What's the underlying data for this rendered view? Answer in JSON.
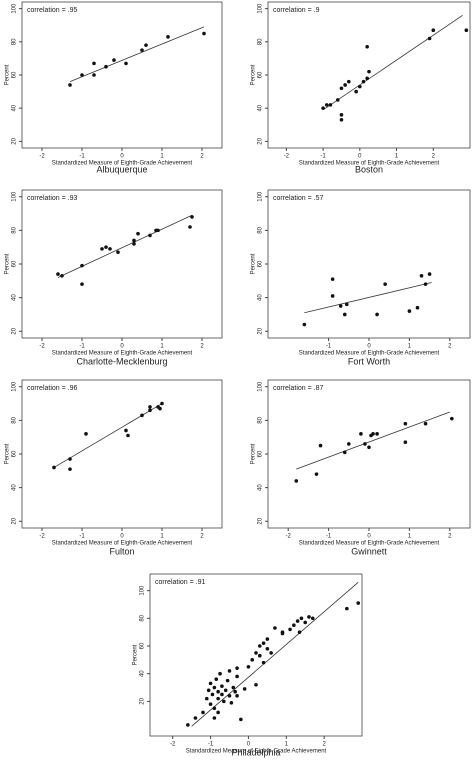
{
  "chart_data": [
    {
      "type": "scatter",
      "title": "Albuquerque",
      "annotation": "correlation = .95",
      "xlabel": "Standardized Measure of Eighth-Grade Achievement",
      "ylabel": "Percent",
      "x": [
        -1.3,
        -1.0,
        -0.7,
        -0.7,
        -0.4,
        -0.2,
        0.1,
        0.5,
        0.6,
        1.15,
        2.05
      ],
      "y": [
        54,
        60,
        60,
        67,
        65,
        69,
        67,
        75,
        78,
        83,
        85
      ],
      "fit": {
        "x": [
          -1.3,
          2.05
        ],
        "y": [
          56,
          89
        ]
      },
      "xlim": [
        -2.5,
        2.5
      ],
      "ylim": [
        16,
        104
      ],
      "xticks": [
        -2,
        -1,
        0,
        1,
        2
      ],
      "yticks": [
        20,
        40,
        60,
        80,
        100
      ],
      "color": "#111111"
    },
    {
      "type": "scatter",
      "title": "Boston",
      "annotation": "correlation = .9",
      "xlabel": "Standardized Measure of Eighth-Grade Achievement",
      "ylabel": "Percent",
      "x": [
        -1.0,
        -0.9,
        -0.8,
        -0.6,
        -0.5,
        -0.5,
        -0.5,
        -0.4,
        -0.3,
        -0.1,
        0.0,
        0.1,
        0.2,
        0.25,
        0.2,
        1.9,
        2.0,
        2.9
      ],
      "y": [
        40,
        42,
        42,
        45,
        36,
        33,
        52,
        54,
        56,
        50,
        53,
        56,
        58,
        62,
        77,
        82,
        87,
        87
      ],
      "fit": {
        "x": [
          -1.0,
          2.8
        ],
        "y": [
          39,
          96
        ]
      },
      "xlim": [
        -2.5,
        3.0
      ],
      "ylim": [
        16,
        104
      ],
      "xticks": [
        -2,
        -1,
        0,
        1,
        2
      ],
      "yticks": [
        20,
        40,
        60,
        80,
        100
      ],
      "color": "#111111"
    },
    {
      "type": "scatter",
      "title": "Charlotte-Mecklenburg",
      "annotation": "correlation = .93",
      "xlabel": "Standardized Measure of Eighth-Grade Achievement",
      "ylabel": "Percent",
      "x": [
        -1.6,
        -1.5,
        -1.0,
        -1.0,
        -0.5,
        -0.4,
        -0.3,
        -0.1,
        0.3,
        0.3,
        0.4,
        0.7,
        0.85,
        0.9,
        1.7,
        1.75
      ],
      "y": [
        54,
        53,
        59,
        48,
        69,
        70,
        69,
        67,
        72,
        74,
        78,
        77,
        80,
        80,
        82,
        88
      ],
      "fit": {
        "x": [
          -1.6,
          1.75
        ],
        "y": [
          52,
          89
        ]
      },
      "xlim": [
        -2.5,
        2.5
      ],
      "ylim": [
        16,
        104
      ],
      "xticks": [
        -2,
        -1,
        0,
        1,
        2
      ],
      "yticks": [
        20,
        40,
        60,
        80,
        100
      ],
      "color": "#111111"
    },
    {
      "type": "scatter",
      "title": "Fort Worth",
      "annotation": "correlation = .57",
      "xlabel": "Standardized Measure of Eighth-Grade Achievement",
      "ylabel": "Percent",
      "x": [
        -1.6,
        -0.9,
        -0.9,
        -0.7,
        -0.6,
        -0.55,
        0.2,
        0.4,
        1.0,
        1.2,
        1.3,
        1.4,
        1.5
      ],
      "y": [
        24,
        51,
        41,
        35,
        30,
        36,
        30,
        48,
        32,
        34,
        53,
        48,
        54
      ],
      "fit": {
        "x": [
          -1.6,
          1.55
        ],
        "y": [
          31,
          49
        ]
      },
      "xlim": [
        -2.5,
        2.5
      ],
      "ylim": [
        16,
        104
      ],
      "xticks": [
        -1,
        0,
        1,
        2
      ],
      "yticks": [
        20,
        40,
        60,
        80,
        100
      ],
      "color": "#111111"
    },
    {
      "type": "scatter",
      "title": "Fulton",
      "annotation": "correlation = .96",
      "xlabel": "Standardized Measure of Eighth-Grade Achievement",
      "ylabel": "Percent",
      "x": [
        -1.7,
        -1.3,
        -1.3,
        -0.9,
        0.1,
        0.15,
        0.5,
        0.7,
        0.7,
        0.9,
        0.95,
        1.0
      ],
      "y": [
        52,
        57,
        51,
        72,
        74,
        71,
        83,
        86,
        88,
        88,
        87,
        90
      ],
      "fit": {
        "x": [
          -1.7,
          1.0
        ],
        "y": [
          52,
          90
        ]
      },
      "xlim": [
        -2.5,
        2.5
      ],
      "ylim": [
        16,
        104
      ],
      "xticks": [
        -2,
        -1,
        0,
        1,
        2
      ],
      "yticks": [
        20,
        40,
        60,
        80,
        100
      ],
      "color": "#111111"
    },
    {
      "type": "scatter",
      "title": "Gwinnett",
      "annotation": "correlation = .87",
      "xlabel": "Standardized Measure of Eighth-Grade Achievement",
      "ylabel": "Percent",
      "x": [
        -1.8,
        -1.3,
        -1.2,
        -0.6,
        -0.5,
        -0.2,
        -0.1,
        0.0,
        0.05,
        0.1,
        0.2,
        0.9,
        0.9,
        1.4,
        2.05
      ],
      "y": [
        44,
        48,
        65,
        61,
        66,
        72,
        66,
        64,
        71,
        72,
        72,
        67,
        78,
        78,
        81
      ],
      "fit": {
        "x": [
          -1.8,
          2.0
        ],
        "y": [
          51,
          85
        ]
      },
      "xlim": [
        -2.5,
        2.5
      ],
      "ylim": [
        16,
        104
      ],
      "xticks": [
        -2,
        -1,
        0,
        1,
        2
      ],
      "yticks": [
        20,
        40,
        60,
        80,
        100
      ],
      "color": "#111111"
    },
    {
      "type": "scatter",
      "title": "Philadelphia",
      "annotation": "correlation = .91",
      "xlabel": "Standardized Measure of Eighth-Grade Achievement",
      "ylabel": "Percent",
      "x": [
        -1.6,
        -1.4,
        -1.2,
        -1.1,
        -1.05,
        -1.0,
        -1.0,
        -0.95,
        -0.9,
        -0.9,
        -0.85,
        -0.8,
        -0.8,
        -0.75,
        -0.7,
        -0.7,
        -0.65,
        -0.6,
        -0.55,
        -0.5,
        -0.5,
        -0.45,
        -0.4,
        -0.35,
        -0.3,
        -0.3,
        -0.2,
        -0.1,
        0.0,
        0.1,
        0.2,
        0.2,
        0.3,
        0.4,
        0.4,
        0.5,
        0.5,
        0.6,
        0.7,
        0.9,
        1.1,
        1.2,
        1.3,
        1.35,
        1.4,
        1.5,
        1.6,
        1.7,
        2.6,
        2.9,
        -0.9,
        -0.8,
        -0.3,
        0.3,
        0.9
      ],
      "y": [
        3,
        8,
        12,
        22,
        28,
        18,
        33,
        25,
        30,
        15,
        36,
        27,
        22,
        40,
        31,
        25,
        20,
        28,
        35,
        24,
        42,
        19,
        30,
        27,
        38,
        44,
        7,
        29,
        45,
        50,
        32,
        55,
        53,
        62,
        48,
        58,
        65,
        55,
        73,
        69,
        72,
        75,
        78,
        70,
        80,
        77,
        81,
        80,
        87,
        91,
        8,
        12,
        24,
        60,
        70
      ],
      "fit": {
        "x": [
          -1.5,
          2.9
        ],
        "y": [
          2,
          106
        ]
      },
      "xlim": [
        -2.6,
        3.0
      ],
      "ylim": [
        -5,
        112
      ],
      "xticks": [
        -2,
        -1,
        0,
        1,
        2
      ],
      "yticks": [
        20,
        40,
        60,
        80,
        100
      ],
      "color": "#111111"
    }
  ]
}
